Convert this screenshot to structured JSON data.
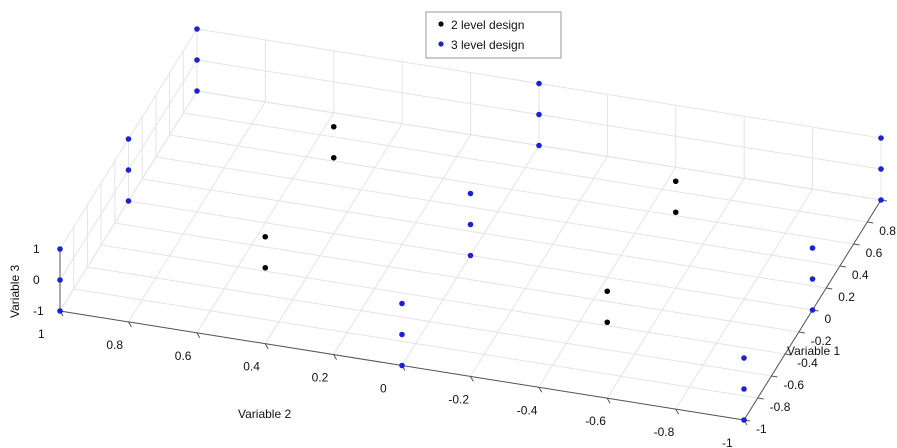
{
  "chart_data": {
    "type": "scatter",
    "projection": "3d",
    "grid": true,
    "legend_position": "top-center",
    "xlabel": "Variable 1",
    "ylabel": "Variable 2",
    "zlabel": "Variable 3",
    "xlim": [
      -1,
      1
    ],
    "ylim": [
      -1,
      1
    ],
    "zlim": [
      -1,
      1
    ],
    "x_ticks": [
      "-1",
      "-0.8",
      "-0.6",
      "-0.4",
      "-0.2",
      "0",
      "0.2",
      "0.4",
      "0.6",
      "0.8"
    ],
    "y_ticks": [
      "1",
      "0.8",
      "0.6",
      "0.4",
      "0.2",
      "0",
      "-0.2",
      "-0.4",
      "-0.6",
      "-0.8",
      "-1"
    ],
    "z_ticks": [
      "1",
      "0",
      "-1"
    ],
    "series": [
      {
        "name": "2 level design",
        "color": "#000000",
        "points": [
          {
            "x": -0.5,
            "y": -0.5,
            "z": -0.5
          },
          {
            "x": -0.5,
            "y": -0.5,
            "z": 0.5
          },
          {
            "x": 0.5,
            "y": -0.5,
            "z": -0.5
          },
          {
            "x": 0.5,
            "y": -0.5,
            "z": 0.5
          },
          {
            "x": -0.5,
            "y": 0.5,
            "z": -0.5
          },
          {
            "x": -0.5,
            "y": 0.5,
            "z": 0.5
          },
          {
            "x": 0.5,
            "y": 0.5,
            "z": -0.5
          },
          {
            "x": 0.5,
            "y": 0.5,
            "z": 0.5
          }
        ]
      },
      {
        "name": "3 level design",
        "color": "#1f1fd6",
        "grid_levels": [
          -1,
          0,
          1
        ],
        "points": [
          {
            "x": -1,
            "y": -1,
            "z": -1
          },
          {
            "x": -1,
            "y": -1,
            "z": 0
          },
          {
            "x": -1,
            "y": -1,
            "z": 1
          },
          {
            "x": 0,
            "y": -1,
            "z": -1
          },
          {
            "x": 0,
            "y": -1,
            "z": 0
          },
          {
            "x": 0,
            "y": -1,
            "z": 1
          },
          {
            "x": 1,
            "y": -1,
            "z": -1
          },
          {
            "x": 1,
            "y": -1,
            "z": 0
          },
          {
            "x": 1,
            "y": -1,
            "z": 1
          },
          {
            "x": -1,
            "y": 0,
            "z": -1
          },
          {
            "x": -1,
            "y": 0,
            "z": 0
          },
          {
            "x": -1,
            "y": 0,
            "z": 1
          },
          {
            "x": 0,
            "y": 0,
            "z": -1
          },
          {
            "x": 0,
            "y": 0,
            "z": 0
          },
          {
            "x": 0,
            "y": 0,
            "z": 1
          },
          {
            "x": 1,
            "y": 0,
            "z": -1
          },
          {
            "x": 1,
            "y": 0,
            "z": 0
          },
          {
            "x": 1,
            "y": 0,
            "z": 1
          },
          {
            "x": -1,
            "y": 1,
            "z": -1
          },
          {
            "x": -1,
            "y": 1,
            "z": 0
          },
          {
            "x": -1,
            "y": 1,
            "z": 1
          },
          {
            "x": 0,
            "y": 1,
            "z": -1
          },
          {
            "x": 0,
            "y": 1,
            "z": 0
          },
          {
            "x": 0,
            "y": 1,
            "z": 1
          },
          {
            "x": 1,
            "y": 1,
            "z": -1
          },
          {
            "x": 1,
            "y": 1,
            "z": 0
          },
          {
            "x": 1,
            "y": 1,
            "z": 1
          }
        ]
      }
    ]
  }
}
